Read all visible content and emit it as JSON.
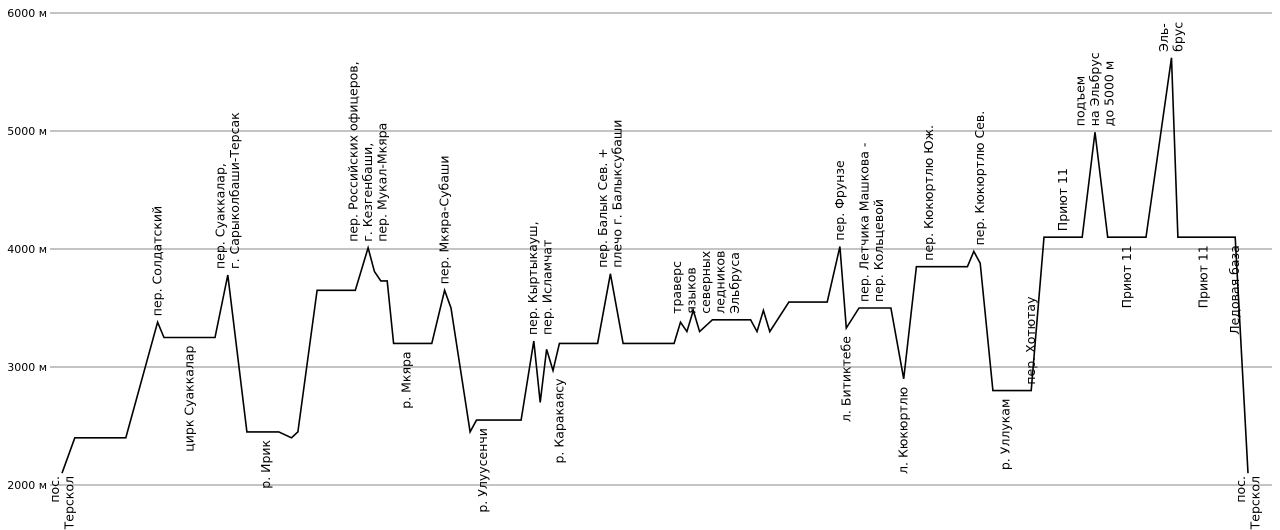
{
  "chart_data": {
    "type": "line",
    "ylim": [
      2000,
      6000
    ],
    "y_ticks": [
      "2000 м",
      "3000 м",
      "4000 м",
      "5000 м",
      "6000 м"
    ],
    "grid": true,
    "profile": [
      [
        0,
        2100
      ],
      [
        1,
        2400
      ],
      [
        5,
        2400
      ],
      [
        7.5,
        3380
      ],
      [
        8,
        3250
      ],
      [
        12,
        3250
      ],
      [
        13,
        3780
      ],
      [
        14.5,
        2450
      ],
      [
        17,
        2450
      ],
      [
        18,
        2400
      ],
      [
        18.5,
        2450
      ],
      [
        20,
        3650
      ],
      [
        23,
        3650
      ],
      [
        24,
        4010
      ],
      [
        24.5,
        3810
      ],
      [
        25,
        3730
      ],
      [
        25.5,
        3730
      ],
      [
        26,
        3200
      ],
      [
        29,
        3200
      ],
      [
        30,
        3650
      ],
      [
        30.5,
        3500
      ],
      [
        32,
        2450
      ],
      [
        32.5,
        2550
      ],
      [
        36,
        2550
      ],
      [
        37,
        3220
      ],
      [
        37.5,
        2700
      ],
      [
        38,
        3150
      ],
      [
        38.5,
        2970
      ],
      [
        39,
        3200
      ],
      [
        42,
        3200
      ],
      [
        43,
        3790
      ],
      [
        44,
        3200
      ],
      [
        48,
        3200
      ],
      [
        48.5,
        3380
      ],
      [
        49,
        3300
      ],
      [
        49.5,
        3480
      ],
      [
        50,
        3300
      ],
      [
        51,
        3400
      ],
      [
        54,
        3400
      ],
      [
        54.5,
        3300
      ],
      [
        55,
        3480
      ],
      [
        55.5,
        3300
      ],
      [
        57,
        3550
      ],
      [
        60,
        3550
      ],
      [
        61,
        4020
      ],
      [
        61.5,
        3330
      ],
      [
        62.5,
        3500
      ],
      [
        65,
        3500
      ],
      [
        66,
        2900
      ],
      [
        67,
        3850
      ],
      [
        71,
        3850
      ],
      [
        71.5,
        3980
      ],
      [
        72,
        3880
      ],
      [
        73,
        2800
      ],
      [
        76,
        2800
      ],
      [
        77,
        4100
      ],
      [
        80,
        4100
      ],
      [
        81,
        4990
      ],
      [
        82,
        4100
      ],
      [
        85,
        4100
      ],
      [
        87,
        5620
      ],
      [
        87.5,
        4100
      ],
      [
        92,
        4100
      ],
      [
        93,
        2100
      ]
    ],
    "annotations": [
      {
        "text": "пос.\nТерскол",
        "x": 0,
        "side": "below"
      },
      {
        "text": "пер. Солдатский",
        "x": 7.5,
        "side": "above"
      },
      {
        "text": "цирк Суаккалар",
        "x": 10,
        "side": "below"
      },
      {
        "text": "пер. Суаккалар,\nг. Сарыколбаши-Терсак",
        "x": 13,
        "side": "above"
      },
      {
        "text": "р. Ирик",
        "x": 16,
        "side": "below"
      },
      {
        "text": "пер. Российских офицеров,\nг. Кезгенбаши,\nпер. Мукал-Мкяра",
        "x": 24,
        "side": "above"
      },
      {
        "text": "р. Мкяра",
        "x": 27,
        "side": "below"
      },
      {
        "text": "пер. Мкяра-Субаши",
        "x": 30,
        "side": "above"
      },
      {
        "text": "р. Улуусенчи",
        "x": 33,
        "side": "below"
      },
      {
        "text": "пер. Кыртыкауш,\nпер. Исламчат",
        "x": 37.5,
        "side": "above"
      },
      {
        "text": "р. Каракаясу",
        "x": 39,
        "side": "below"
      },
      {
        "text": "пер. Балык Сев. +\nплечо г. Балыксубаши",
        "x": 43,
        "side": "above"
      },
      {
        "text": "траверс\nязыков\nсеверных\nледников\nЭльбруса",
        "x": 50.5,
        "side": "above"
      },
      {
        "text": "пер. Фрунзе",
        "x": 61,
        "side": "above"
      },
      {
        "text": "л. Битиктебе",
        "x": 61.5,
        "side": "below"
      },
      {
        "text": "пер. Летчика Машкова -\nпер. Кольцевой",
        "x": 63.5,
        "side": "above"
      },
      {
        "text": "л. Кюкюртлю",
        "x": 66,
        "side": "below"
      },
      {
        "text": "пер. Кюкюртлю Юж.",
        "x": 68,
        "side": "above"
      },
      {
        "text": "пер. Кюкюртлю Сев.",
        "x": 72,
        "side": "above"
      },
      {
        "text": "р. Уллукам",
        "x": 74,
        "side": "below"
      },
      {
        "text": "пер. Хотютау",
        "x": 76,
        "side": "above"
      },
      {
        "text": "Приют 11",
        "x": 78.5,
        "side": "above"
      },
      {
        "text": "подъем\nна Эльбрус\nдо 5000 м",
        "x": 81,
        "side": "above"
      },
      {
        "text": "Приют 11",
        "x": 83.5,
        "side": "below"
      },
      {
        "text": "Эль-\nбрус",
        "x": 87,
        "side": "above"
      },
      {
        "text": "Приют 11",
        "x": 89.5,
        "side": "below"
      },
      {
        "text": "Ледовая база",
        "x": 92,
        "side": "below"
      },
      {
        "text": "пос.\nТерскол",
        "x": 93,
        "side": "below"
      }
    ]
  }
}
